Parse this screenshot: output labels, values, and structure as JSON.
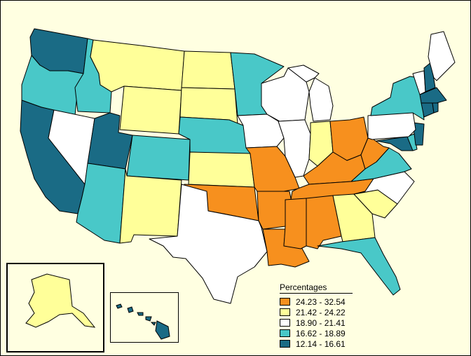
{
  "legend": {
    "title": "Percentages",
    "classes": [
      {
        "label": "24.23 - 32.54",
        "color": "#f7901e"
      },
      {
        "label": "21.42 - 24.22",
        "color": "#ffff99"
      },
      {
        "label": "18.90 - 21.41",
        "color": "#ffffff"
      },
      {
        "label": "16.62 - 18.89",
        "color": "#49c8c8"
      },
      {
        "label": "12.14 - 16.61",
        "color": "#1a6b85"
      }
    ]
  },
  "colors": {
    "background": "#ffffe1",
    "border": "#000000"
  },
  "states": [
    {
      "code": "WA",
      "class": 4
    },
    {
      "code": "OR",
      "class": 3
    },
    {
      "code": "CA",
      "class": 4
    },
    {
      "code": "ID",
      "class": 3
    },
    {
      "code": "NV",
      "class": 2
    },
    {
      "code": "UT",
      "class": 4
    },
    {
      "code": "AZ",
      "class": 3
    },
    {
      "code": "MT",
      "class": 1
    },
    {
      "code": "WY",
      "class": 1
    },
    {
      "code": "CO",
      "class": 3
    },
    {
      "code": "NM",
      "class": 1
    },
    {
      "code": "ND",
      "class": 1
    },
    {
      "code": "SD",
      "class": 1
    },
    {
      "code": "NE",
      "class": 3
    },
    {
      "code": "KS",
      "class": 1
    },
    {
      "code": "OK",
      "class": 0
    },
    {
      "code": "TX",
      "class": 2
    },
    {
      "code": "MN",
      "class": 3
    },
    {
      "code": "IA",
      "class": 2
    },
    {
      "code": "MO",
      "class": 0
    },
    {
      "code": "AR",
      "class": 0
    },
    {
      "code": "LA",
      "class": 0
    },
    {
      "code": "WI",
      "class": 2
    },
    {
      "code": "IL",
      "class": 2
    },
    {
      "code": "MI",
      "class": 2
    },
    {
      "code": "IN",
      "class": 1
    },
    {
      "code": "OH",
      "class": 0
    },
    {
      "code": "KY",
      "class": 0
    },
    {
      "code": "TN",
      "class": 0
    },
    {
      "code": "MS",
      "class": 0
    },
    {
      "code": "AL",
      "class": 0
    },
    {
      "code": "GA",
      "class": 1
    },
    {
      "code": "FL",
      "class": 3
    },
    {
      "code": "SC",
      "class": 1
    },
    {
      "code": "NC",
      "class": 2
    },
    {
      "code": "VA",
      "class": 3
    },
    {
      "code": "WV",
      "class": 0
    },
    {
      "code": "MD",
      "class": 4
    },
    {
      "code": "DE",
      "class": 3
    },
    {
      "code": "NJ",
      "class": 4
    },
    {
      "code": "PA",
      "class": 2
    },
    {
      "code": "NY",
      "class": 3
    },
    {
      "code": "VT",
      "class": 2
    },
    {
      "code": "NH",
      "class": 4
    },
    {
      "code": "ME",
      "class": 2
    },
    {
      "code": "MA",
      "class": 4
    },
    {
      "code": "CT",
      "class": 4
    },
    {
      "code": "RI",
      "class": 4
    },
    {
      "code": "AK",
      "class": 1
    },
    {
      "code": "HI",
      "class": 4
    }
  ]
}
